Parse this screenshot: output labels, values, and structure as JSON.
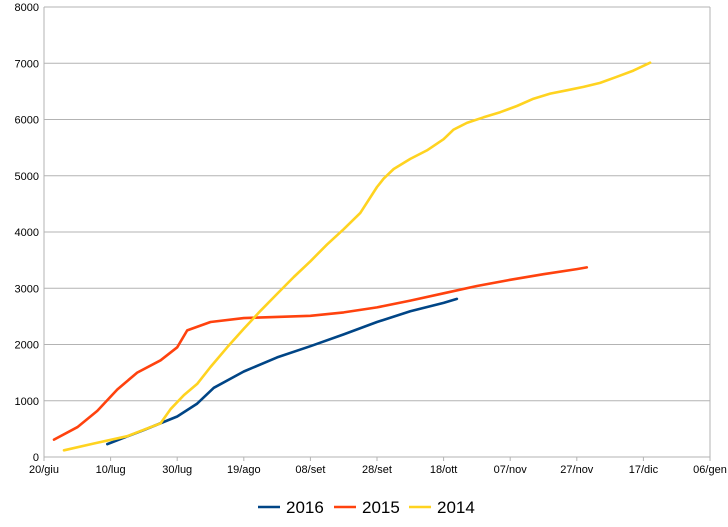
{
  "chart_data": {
    "type": "line",
    "title": "",
    "xlabel": "",
    "ylabel": "",
    "ylim": [
      0,
      8000
    ],
    "yticks": [
      "0",
      "1000",
      "2000",
      "3000",
      "4000",
      "5000",
      "6000",
      "7000",
      "8000"
    ],
    "xlim_days": [
      0,
      200
    ],
    "xticks": [
      "20/giu",
      "10/lug",
      "30/lug",
      "19/ago",
      "08/set",
      "28/set",
      "18/ott",
      "07/nov",
      "27/nov",
      "17/dic",
      "06/gen"
    ],
    "grid": "horizontal",
    "legend": "bottom",
    "series": [
      {
        "name": "2016",
        "color": "#004586",
        "x": [
          "09/lug",
          "20/lug",
          "30/lug",
          "05/ago",
          "10/ago",
          "19/ago",
          "29/ago",
          "08/set",
          "18/set",
          "28/set",
          "08/ott",
          "18/ott",
          "22/ott"
        ],
        "y": [
          230,
          480,
          720,
          950,
          1230,
          1520,
          1770,
          1970,
          2180,
          2400,
          2590,
          2740,
          2810
        ]
      },
      {
        "name": "2015",
        "color": "#ff420e",
        "x": [
          "23/giu",
          "30/giu",
          "06/lug",
          "12/lug",
          "18/lug",
          "25/lug",
          "30/lug",
          "02/ago",
          "09/ago",
          "19/ago",
          "29/ago",
          "08/set",
          "18/set",
          "28/set",
          "08/ott",
          "18/ott",
          "28/ott",
          "07/nov",
          "17/nov",
          "27/nov",
          "30/nov"
        ],
        "y": [
          310,
          530,
          820,
          1200,
          1500,
          1720,
          1950,
          2250,
          2400,
          2470,
          2490,
          2510,
          2570,
          2660,
          2780,
          2910,
          3040,
          3150,
          3250,
          3340,
          3370
        ]
      },
      {
        "name": "2014",
        "color": "#ffd320",
        "x": [
          "26/giu",
          "05/lug",
          "15/lug",
          "25/lug",
          "28/lug",
          "01/ago",
          "05/ago",
          "09/ago",
          "14/ago",
          "19/ago",
          "24/ago",
          "29/ago",
          "03/set",
          "08/set",
          "13/set",
          "18/set",
          "23/set",
          "28/set",
          "30/set",
          "03/ott",
          "08/ott",
          "13/ott",
          "18/ott",
          "21/ott",
          "25/ott",
          "30/ott",
          "04/nov",
          "09/nov",
          "14/nov",
          "19/nov",
          "24/nov",
          "29/nov",
          "04/dic",
          "09/dic",
          "14/dic",
          "19/dic"
        ],
        "y": [
          120,
          240,
          370,
          600,
          850,
          1100,
          1300,
          1600,
          1950,
          2280,
          2600,
          2900,
          3200,
          3480,
          3780,
          4050,
          4340,
          4800,
          4950,
          5120,
          5300,
          5450,
          5650,
          5820,
          5940,
          6040,
          6130,
          6240,
          6370,
          6460,
          6520,
          6580,
          6650,
          6760,
          6870,
          7010
        ]
      }
    ]
  }
}
